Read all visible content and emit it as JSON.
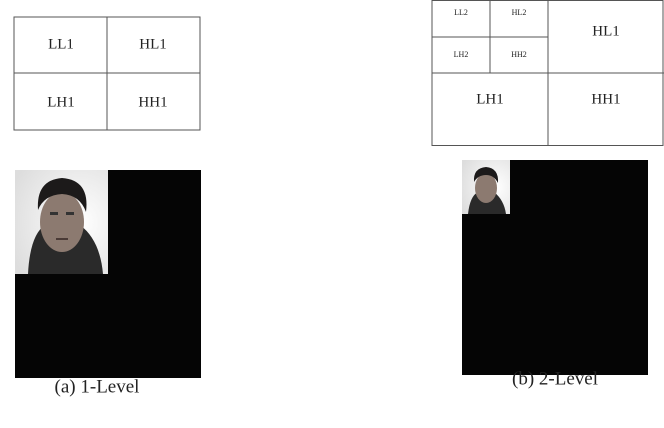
{
  "level1": {
    "grid": {
      "ll1": "LL1",
      "hl1": "HL1",
      "lh1": "LH1",
      "hh1": "HH1"
    },
    "caption": "(a) 1-Level"
  },
  "level2": {
    "grid": {
      "ll2": "LL2",
      "hl2": "HL2",
      "lh2": "LH2",
      "hh2": "HH2",
      "hl1": "HL1",
      "lh1": "LH1",
      "hh1": "HH1"
    },
    "caption": "(b) 2-Level"
  }
}
